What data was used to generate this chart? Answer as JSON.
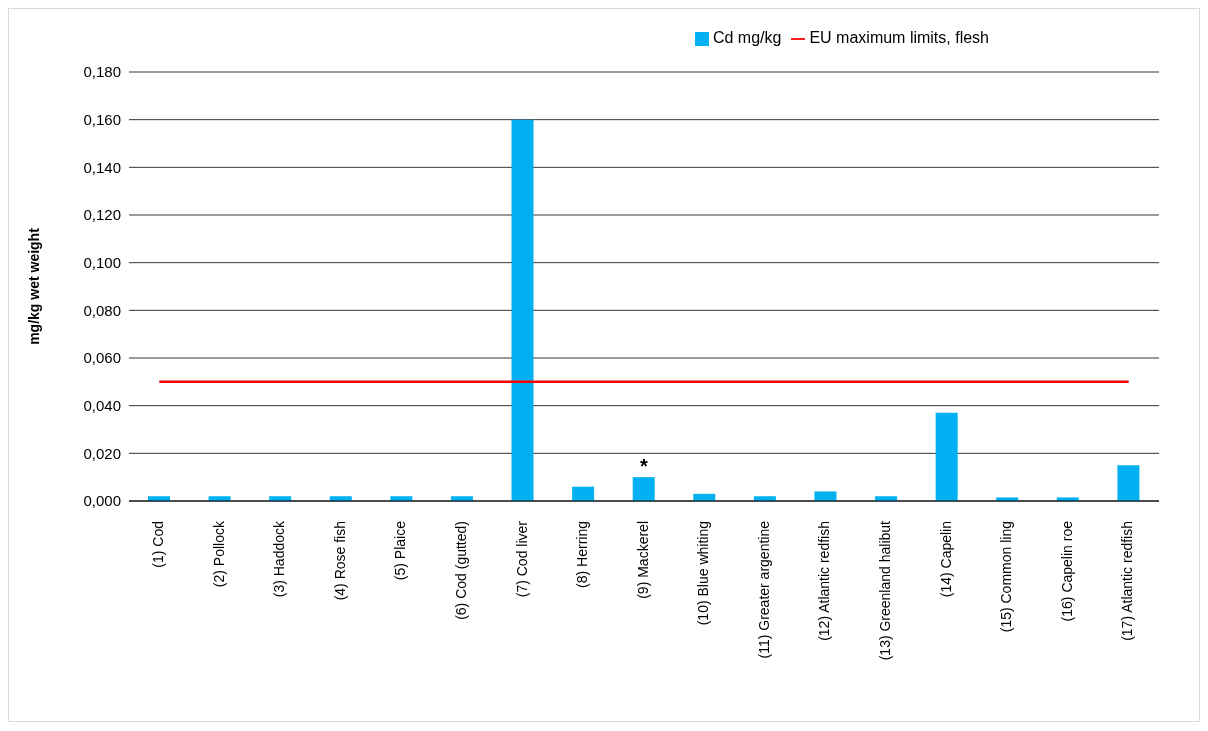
{
  "chart_data": {
    "type": "bar",
    "ylabel": "mg/kg wet weight",
    "categories": [
      "(1) Cod",
      "(2) Pollock",
      "(3) Haddock",
      "(4) Rose fish",
      "(5) Plaice",
      "(6) Cod (gutted)",
      "(7) Cod liver",
      "(8) Herring",
      "(9) Mackerel",
      "(10) Blue whiting",
      "(11) Greater argentine",
      "(12) Atlantic redfish",
      "(13) Greenland halibut",
      "(14) Capelin",
      "(15) Common ling",
      "(16) Capelin roe",
      "(17) Atlantic redfish"
    ],
    "series": [
      {
        "name": "Cd mg/kg",
        "color": "#00b0f0",
        "values": [
          0.002,
          0.002,
          0.002,
          0.002,
          0.002,
          0.002,
          0.16,
          0.006,
          0.01,
          0.003,
          0.002,
          0.004,
          0.002,
          0.037,
          0.0015,
          0.0015,
          0.015
        ]
      },
      {
        "name": "EU maximum limits, flesh",
        "type": "line",
        "color": "#ff0000",
        "values": [
          0.05,
          0.05,
          0.05,
          0.05,
          0.05,
          0.05,
          0.05,
          0.05,
          0.05,
          0.05,
          0.05,
          0.05,
          0.05,
          0.05,
          0.05,
          0.05,
          0.05
        ]
      }
    ],
    "ylim": [
      0,
      0.18
    ],
    "yticks": [
      {
        "value": 0,
        "label": "0,000"
      },
      {
        "value": 0.02,
        "label": "0,020"
      },
      {
        "value": 0.04,
        "label": "0,040"
      },
      {
        "value": 0.06,
        "label": "0,060"
      },
      {
        "value": 0.08,
        "label": "0,080"
      },
      {
        "value": 0.1,
        "label": "0,100"
      },
      {
        "value": 0.12,
        "label": "0,120"
      },
      {
        "value": 0.14,
        "label": "0,140"
      },
      {
        "value": 0.16,
        "label": "0,160"
      },
      {
        "value": 0.18,
        "label": "0,180"
      }
    ],
    "annotations": [
      {
        "text": "*",
        "x": "(9) Mackerel",
        "y": 0.01
      }
    ],
    "grid": "y",
    "legend": "top right",
    "marker": "none",
    "line_style": "solid"
  }
}
